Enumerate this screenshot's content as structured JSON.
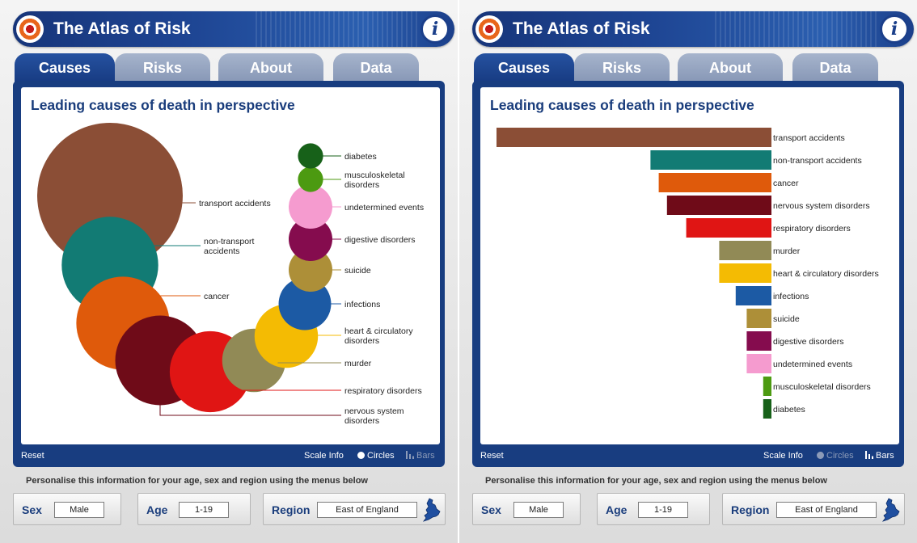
{
  "app": {
    "title": "The Atlas of Risk"
  },
  "tabs": [
    "Causes",
    "Risks",
    "About",
    "Data"
  ],
  "active_tab": "Causes",
  "content_title": "Leading causes of death in perspective",
  "footer": {
    "reset": "Reset",
    "scale_info": "Scale Info",
    "circles": "Circles",
    "bars": "Bars"
  },
  "personalise_text": "Personalise this information for your age, sex and region using the menus below",
  "selectors": {
    "sex_label": "Sex",
    "sex_value": "Male",
    "age_label": "Age",
    "age_value": "1-19",
    "region_label": "Region",
    "region_value": "East of England"
  },
  "panels": [
    {
      "view": "circles",
      "active_toggle": "Circles"
    },
    {
      "view": "bars",
      "active_toggle": "Bars"
    }
  ],
  "chart_data": {
    "type": "bar",
    "title": "Leading causes of death in perspective",
    "relative_scale_max": 100,
    "categories": [
      "transport accidents",
      "non-transport accidents",
      "cancer",
      "nervous system disorders",
      "respiratory disorders",
      "murder",
      "heart & circulatory disorders",
      "infections",
      "suicide",
      "digestive disorders",
      "undetermined events",
      "musculoskeletal disorders",
      "diabetes"
    ],
    "circle_labels": [
      "transport accidents",
      "non-transport\naccidents",
      "cancer",
      "nervous system\ndisorders",
      "respiratory disorders",
      "murder",
      "heart & circulatory\ndisorders",
      "infections",
      "suicide",
      "digestive disorders",
      "undetermined events",
      "musculoskeletal\ndisorders",
      "diabetes"
    ],
    "values": [
      100,
      44,
      41,
      38,
      31,
      19,
      19,
      13,
      9,
      9,
      9,
      3,
      3
    ],
    "colors": [
      "#8b4e36",
      "#127b74",
      "#df5a0b",
      "#6f0b18",
      "#e01514",
      "#918a56",
      "#f4bb03",
      "#1c5aa4",
      "#ad8f38",
      "#850c4e",
      "#f59bcf",
      "#4c9a11",
      "#176119"
    ]
  }
}
